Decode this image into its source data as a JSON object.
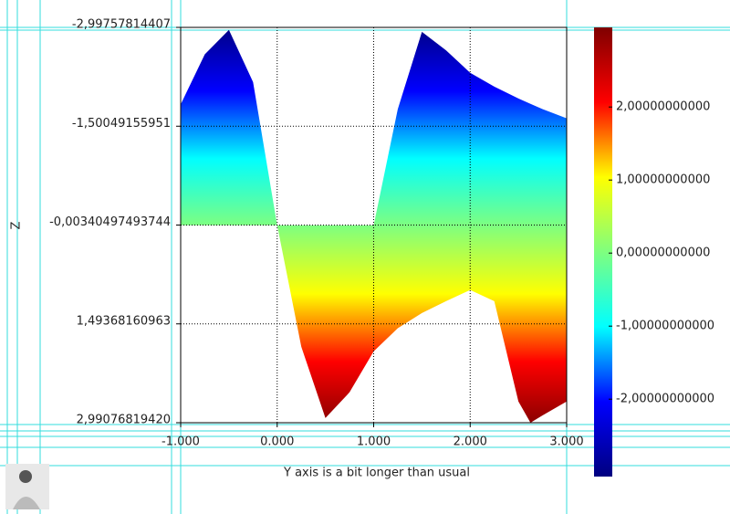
{
  "chart_data": {
    "type": "band",
    "x_label": "Y axis is a bit longer than usual",
    "y_label": "Z",
    "x": [
      -1,
      -0.75,
      -0.5,
      -0.25,
      0,
      0.25,
      0.5,
      0.75,
      1,
      1.25,
      1.5,
      1.75,
      2,
      2.25,
      2.5,
      2.625,
      2.75,
      3
    ],
    "z_min": [
      -1.83,
      -2.59,
      -2.96,
      -2.17,
      0,
      0,
      0,
      0,
      0,
      -1.76,
      -2.93,
      -2.65,
      -2.31,
      -2.1,
      -1.92,
      -1.84,
      -1.76,
      -1.62
    ],
    "z_max": [
      0,
      0,
      0,
      0,
      0,
      1.84,
      2.92,
      2.53,
      1.91,
      1.56,
      1.33,
      1.15,
      0.98,
      1.15,
      2.67,
      2.99,
      2.88,
      2.67
    ],
    "xlim": [
      -1,
      3
    ],
    "xticks": [
      {
        "value": -1,
        "label": "-1.000"
      },
      {
        "value": 0,
        "label": "0.000"
      },
      {
        "value": 1,
        "label": "1.000"
      },
      {
        "value": 2,
        "label": "2.000"
      },
      {
        "value": 3,
        "label": "3.000"
      }
    ],
    "ylim": [
      -2.99757814407,
      2.9907681942
    ],
    "y_inverted": true,
    "yticks": [
      {
        "value": -2.99757814407,
        "label": "-2,99757814407"
      },
      {
        "value": -1.50049155951,
        "label": "-1,50049155951"
      },
      {
        "value": -0.00340497493744,
        "label": "-0,00340497493744"
      },
      {
        "value": 1.49368160963,
        "label": "1,49368160963"
      },
      {
        "value": 2.9907681942,
        "label": "2,99076819420"
      }
    ],
    "grid": true,
    "colormap": [
      "#00007f",
      "#0000ff",
      "#00ffff",
      "#7fff7f",
      "#ffff00",
      "#ff0000",
      "#7f0000"
    ],
    "colorbar_lim": [
      -3.06,
      3.09
    ],
    "colorbar_ticks": [
      {
        "value": -2,
        "label": "-2,00000000000"
      },
      {
        "value": -1,
        "label": "-1,00000000000"
      },
      {
        "value": 0,
        "label": "0,00000000000"
      },
      {
        "value": 1,
        "label": "1,00000000000"
      },
      {
        "value": 2,
        "label": "2,00000000000"
      }
    ]
  }
}
